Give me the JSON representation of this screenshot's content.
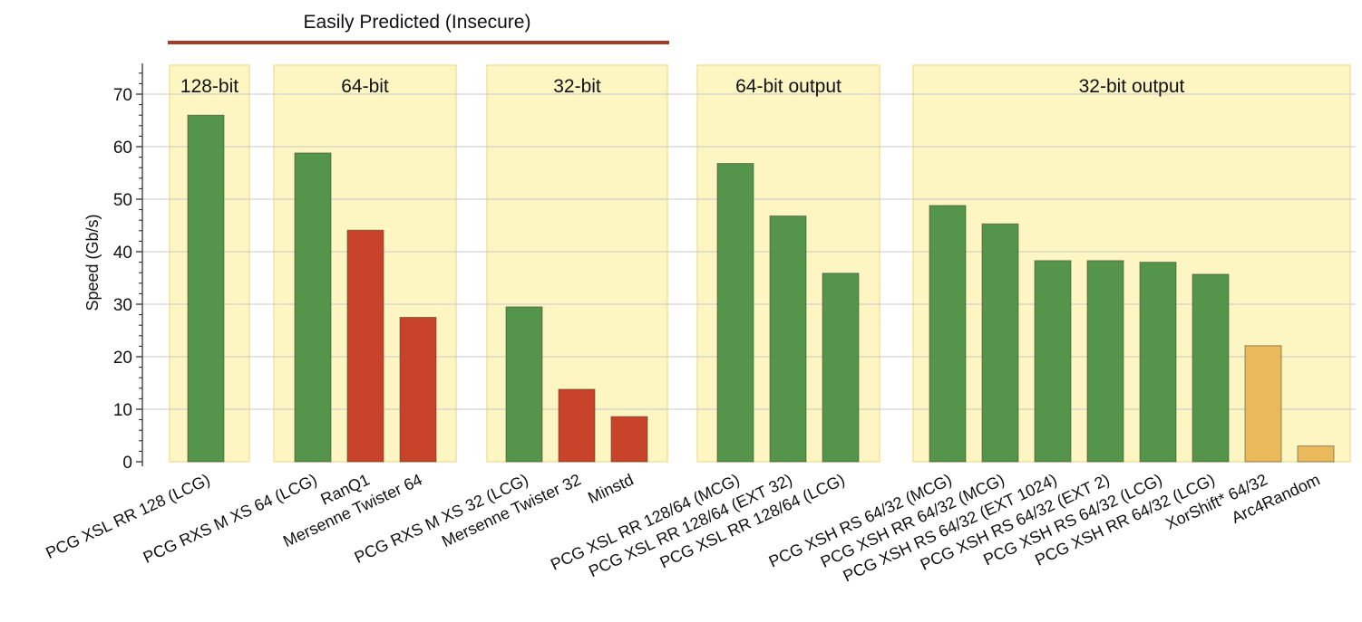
{
  "chart_data": {
    "type": "bar",
    "title": "",
    "xlabel": "",
    "ylabel": "Speed (Gb/s)",
    "ylim": [
      0,
      76
    ],
    "yticks": [
      0,
      10,
      20,
      30,
      40,
      50,
      60,
      70
    ],
    "grid": true,
    "banner": {
      "text": "Easily Predicted (Insecure)",
      "color": "#a83a2a",
      "spans_groups": [
        "128-bit",
        "64-bit",
        "32-bit"
      ]
    },
    "colors": {
      "green": "#54944b",
      "red": "#c9432a",
      "orange": "#e9b95c",
      "group_fill": "#fdf6c3",
      "group_edge": "#f3e2a0"
    },
    "groups": [
      {
        "label": "128-bit",
        "bars": [
          {
            "category": "PCG XSL RR 128 (LCG)",
            "value": 66,
            "color": "green"
          }
        ]
      },
      {
        "label": "64-bit",
        "bars": [
          {
            "category": "PCG RXS M XS 64 (LCG)",
            "value": 58.8,
            "color": "green"
          },
          {
            "category": "RanQ1",
            "value": 44.1,
            "color": "red"
          },
          {
            "category": "Mersenne Twister 64",
            "value": 27.5,
            "color": "red"
          }
        ]
      },
      {
        "label": "32-bit",
        "bars": [
          {
            "category": "PCG RXS M XS 32 (LCG)",
            "value": 29.5,
            "color": "green"
          },
          {
            "category": "Mersenne Twister 32",
            "value": 13.8,
            "color": "red"
          },
          {
            "category": "Minstd",
            "value": 8.6,
            "color": "red"
          }
        ]
      },
      {
        "label": "64-bit output",
        "bars": [
          {
            "category": "PCG XSL RR 128/64 (MCG)",
            "value": 56.8,
            "color": "green"
          },
          {
            "category": "PCG XSL RR 128/64 (EXT 32)",
            "value": 46.8,
            "color": "green"
          },
          {
            "category": "PCG XSL RR 128/64 (LCG)",
            "value": 35.9,
            "color": "green"
          }
        ]
      },
      {
        "label": "32-bit output",
        "bars": [
          {
            "category": "PCG XSH RS 64/32 (MCG)",
            "value": 48.8,
            "color": "green"
          },
          {
            "category": "PCG XSH RR 64/32 (MCG)",
            "value": 45.3,
            "color": "green"
          },
          {
            "category": "PCG XSH RS 64/32 (EXT 1024)",
            "value": 38.3,
            "color": "green"
          },
          {
            "category": "PCG XSH RS 64/32 (EXT 2)",
            "value": 38.3,
            "color": "green"
          },
          {
            "category": "PCG XSH RS 64/32 (LCG)",
            "value": 38.0,
            "color": "green"
          },
          {
            "category": "PCG XSH RR 64/32 (LCG)",
            "value": 35.7,
            "color": "green"
          },
          {
            "category": "XorShift* 64/32",
            "value": 22.1,
            "color": "orange"
          },
          {
            "category": "Arc4Random",
            "value": 3.0,
            "color": "orange"
          }
        ]
      }
    ]
  }
}
